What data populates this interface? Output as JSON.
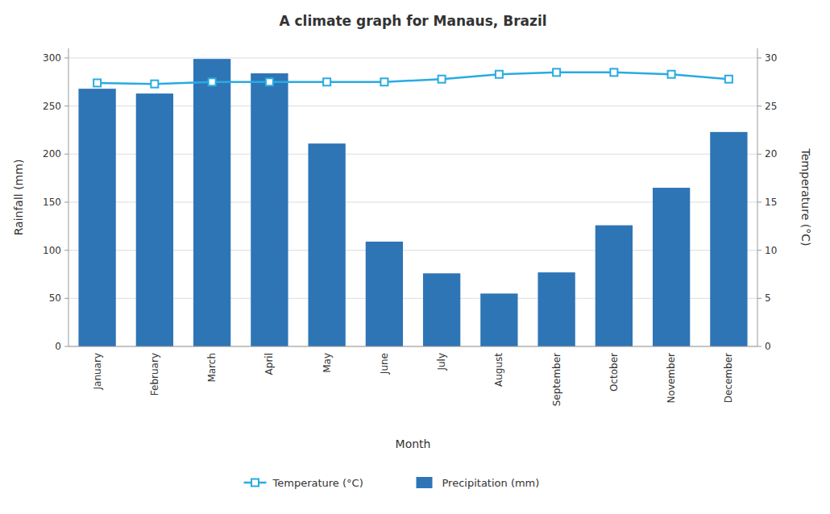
{
  "chart_data": {
    "type": "bar",
    "title": "A climate graph for Manaus, Brazil",
    "categories": [
      "January",
      "February",
      "March",
      "April",
      "May",
      "June",
      "July",
      "August",
      "September",
      "October",
      "November",
      "December"
    ],
    "series": [
      {
        "name": "Temperature (°C)",
        "type": "line",
        "axis": "y2",
        "color": "#29abe2",
        "marker": "square",
        "values": [
          27.4,
          27.3,
          27.5,
          27.5,
          27.5,
          27.5,
          27.8,
          28.3,
          28.5,
          28.5,
          28.3,
          27.8
        ]
      },
      {
        "name": "Precipitation (mm)",
        "type": "bar",
        "color": "#2e75b6",
        "values": [
          268,
          263,
          299,
          284,
          211,
          109,
          76,
          55,
          77,
          126,
          165,
          223
        ]
      }
    ],
    "xlabel": "Month",
    "ylabel": "Rainfall (mm)",
    "y2label": "Temperature (°C)",
    "ylim": [
      0,
      310
    ],
    "yticks": [
      0,
      50,
      100,
      150,
      200,
      250,
      300
    ],
    "y2lim": [
      0,
      31
    ],
    "y2ticks": [
      0,
      5,
      10,
      15,
      20,
      25,
      30
    ],
    "grid": true,
    "legend": "bottom"
  }
}
